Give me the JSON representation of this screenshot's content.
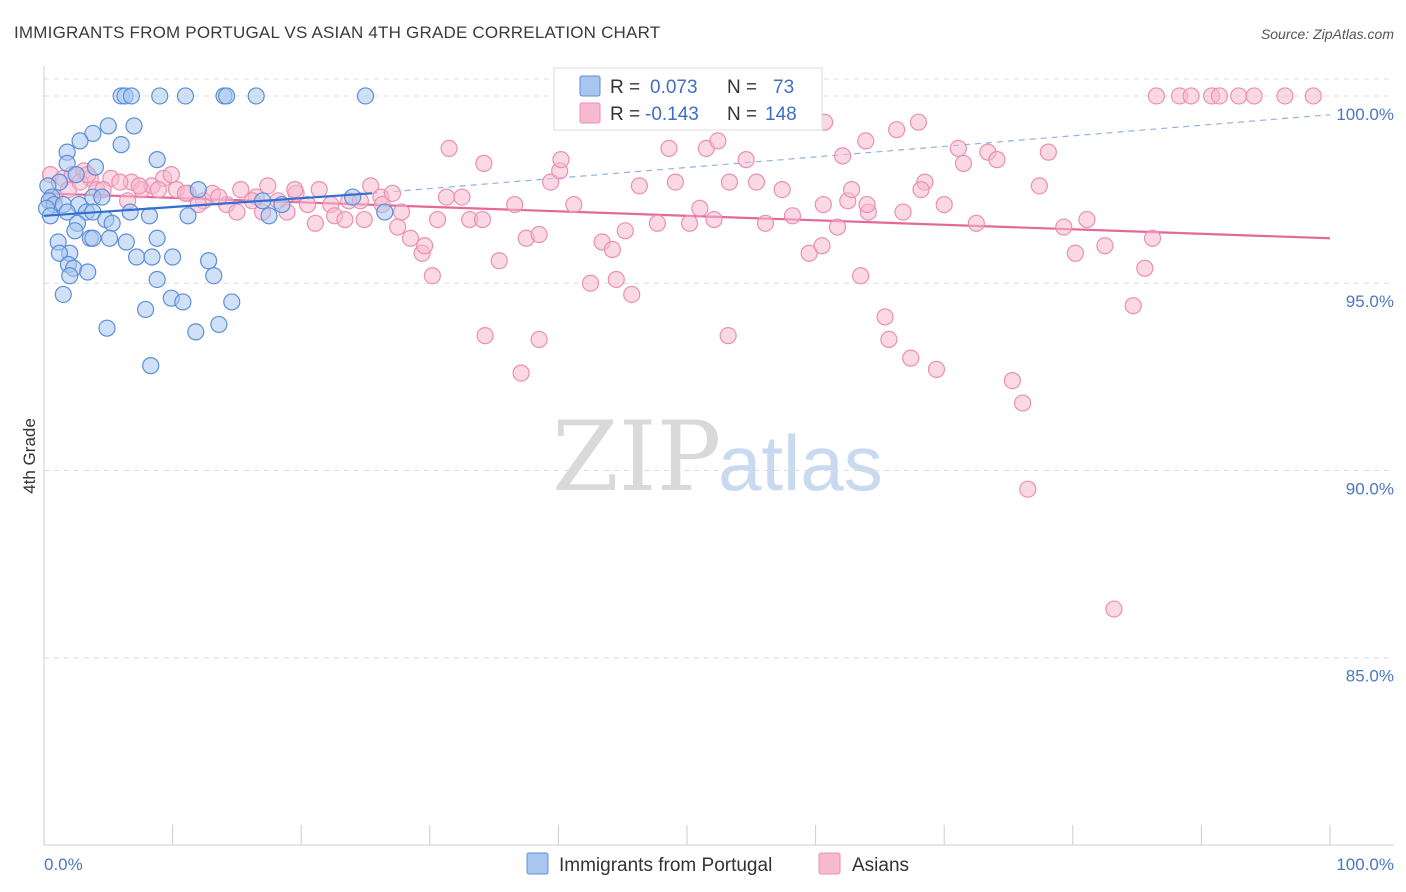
{
  "header": {
    "title": "IMMIGRANTS FROM PORTUGAL VS ASIAN 4TH GRADE CORRELATION CHART",
    "source": "Source: ZipAtlas.com"
  },
  "watermark": {
    "zip": "ZIP",
    "atlas": "atlas"
  },
  "stats_legend": {
    "rows": [
      {
        "r_label": "R =",
        "r_value": "0.073",
        "n_label": "N =",
        "n_value": "73"
      },
      {
        "r_label": "R =",
        "r_value": "-0.143",
        "n_label": "N =",
        "n_value": "148"
      }
    ]
  },
  "colors": {
    "portugal_fill": "#a9c6ef",
    "portugal_stroke": "#5b8fd9",
    "portugal_line": "#2f6fcf",
    "asians_fill": "#f6b9cf",
    "asians_stroke": "#eb8fb0",
    "asians_line": "#e2699a",
    "grid": "#dcdcdc",
    "tick_text": "#4a78c2"
  },
  "chart_data": {
    "type": "scatter",
    "title": "IMMIGRANTS FROM PORTUGAL VS ASIAN 4TH GRADE CORRELATION CHART",
    "xlabel": "",
    "ylabel": "4th Grade",
    "xlim": [
      0,
      100
    ],
    "ylim": [
      80,
      100.8
    ],
    "x_ticks": [
      "0.0%",
      "100.0%"
    ],
    "y_ticks": [
      {
        "value": 100,
        "label": "100.0%"
      },
      {
        "value": 95,
        "label": "95.0%"
      },
      {
        "value": 90,
        "label": "90.0%"
      },
      {
        "value": 85,
        "label": "85.0%"
      }
    ],
    "legend_position": "bottom-center",
    "series": [
      {
        "name": "Immigrants from Portugal",
        "r": 0.073,
        "n": 73,
        "trend": {
          "x": [
            0,
            25.5
          ],
          "y": [
            96.8,
            97.4
          ],
          "dashed_to": [
            100,
            99.5
          ]
        },
        "points": [
          [
            6,
            100
          ],
          [
            6.3,
            100
          ],
          [
            6.8,
            100
          ],
          [
            9,
            100
          ],
          [
            11,
            100
          ],
          [
            14,
            100
          ],
          [
            14.2,
            100
          ],
          [
            16.5,
            100
          ],
          [
            25,
            100
          ],
          [
            5,
            99.2
          ],
          [
            7,
            99.2
          ],
          [
            3.8,
            99
          ],
          [
            1.8,
            98.5
          ],
          [
            6,
            98.7
          ],
          [
            2.8,
            98.8
          ],
          [
            8.8,
            98.3
          ],
          [
            1.8,
            98.2
          ],
          [
            4,
            98.1
          ],
          [
            2.5,
            97.9
          ],
          [
            1.2,
            97.7
          ],
          [
            0.3,
            97.6
          ],
          [
            0.6,
            97.3
          ],
          [
            0.4,
            97.2
          ],
          [
            0.8,
            97.1
          ],
          [
            1.5,
            97.1
          ],
          [
            2.7,
            97.1
          ],
          [
            3.8,
            97.3
          ],
          [
            4.5,
            97.3
          ],
          [
            0.2,
            97
          ],
          [
            0.5,
            96.8
          ],
          [
            1.8,
            96.9
          ],
          [
            3.3,
            96.9
          ],
          [
            3.8,
            96.9
          ],
          [
            6.7,
            96.9
          ],
          [
            4.8,
            96.7
          ],
          [
            5.3,
            96.6
          ],
          [
            2.6,
            96.6
          ],
          [
            2.4,
            96.4
          ],
          [
            8.2,
            96.8
          ],
          [
            11.2,
            96.8
          ],
          [
            3.6,
            96.2
          ],
          [
            3.8,
            96.2
          ],
          [
            5.1,
            96.2
          ],
          [
            1.1,
            96.1
          ],
          [
            6.4,
            96.1
          ],
          [
            8.8,
            96.2
          ],
          [
            2,
            95.8
          ],
          [
            1.2,
            95.8
          ],
          [
            7.2,
            95.7
          ],
          [
            8.4,
            95.7
          ],
          [
            10,
            95.7
          ],
          [
            12.8,
            95.6
          ],
          [
            1.9,
            95.5
          ],
          [
            2.3,
            95.4
          ],
          [
            3.4,
            95.3
          ],
          [
            2,
            95.2
          ],
          [
            13.2,
            95.2
          ],
          [
            8.8,
            95.1
          ],
          [
            1.5,
            94.7
          ],
          [
            9.9,
            94.6
          ],
          [
            10.8,
            94.5
          ],
          [
            14.6,
            94.5
          ],
          [
            7.9,
            94.3
          ],
          [
            4.9,
            93.8
          ],
          [
            13.6,
            93.9
          ],
          [
            11.8,
            93.7
          ],
          [
            8.3,
            92.8
          ],
          [
            12,
            97.5
          ],
          [
            17,
            97.2
          ],
          [
            18.5,
            97.1
          ],
          [
            24,
            97.3
          ],
          [
            17.5,
            96.8
          ],
          [
            26.5,
            96.9
          ]
        ]
      },
      {
        "name": "Asians",
        "r": -0.143,
        "n": 148,
        "trend": {
          "x": [
            0,
            100
          ],
          "y": [
            97.4,
            96.2
          ]
        },
        "points": [
          [
            0.5,
            97.9
          ],
          [
            1.5,
            97.8
          ],
          [
            2.2,
            97.9
          ],
          [
            3.1,
            98
          ],
          [
            3.6,
            97.8
          ],
          [
            4.1,
            97.5
          ],
          [
            5.2,
            97.8
          ],
          [
            6.8,
            97.7
          ],
          [
            7.6,
            97.5
          ],
          [
            8.4,
            97.6
          ],
          [
            9.3,
            97.8
          ],
          [
            10.3,
            97.5
          ],
          [
            11.2,
            97.4
          ],
          [
            12.4,
            97.2
          ],
          [
            13.1,
            97.4
          ],
          [
            14.2,
            97.1
          ],
          [
            15.3,
            97.5
          ],
          [
            16.5,
            97.3
          ],
          [
            17.4,
            97.6
          ],
          [
            18.2,
            97.2
          ],
          [
            19.6,
            97.4
          ],
          [
            20.5,
            97.1
          ],
          [
            21.4,
            97.5
          ],
          [
            22.3,
            97.1
          ],
          [
            23.7,
            97.2
          ],
          [
            24.6,
            97.2
          ],
          [
            25.4,
            97.6
          ],
          [
            26.2,
            97.3
          ],
          [
            27.1,
            97.4
          ],
          [
            27.5,
            96.5
          ],
          [
            0.8,
            97.3
          ],
          [
            1.9,
            97.5
          ],
          [
            2.8,
            97.7
          ],
          [
            3.4,
            97.9
          ],
          [
            4.6,
            97.5
          ],
          [
            5.9,
            97.7
          ],
          [
            6.5,
            97.2
          ],
          [
            7.4,
            97.6
          ],
          [
            8.9,
            97.5
          ],
          [
            9.9,
            97.9
          ],
          [
            11,
            97.4
          ],
          [
            12,
            97.1
          ],
          [
            13.6,
            97.3
          ],
          [
            15,
            96.9
          ],
          [
            16.2,
            97.2
          ],
          [
            17,
            96.9
          ],
          [
            18.9,
            96.9
          ],
          [
            19.5,
            97.5
          ],
          [
            21.1,
            96.6
          ],
          [
            22.6,
            96.8
          ],
          [
            23.4,
            96.7
          ],
          [
            24.9,
            96.7
          ],
          [
            26.3,
            97.1
          ],
          [
            27.8,
            96.9
          ],
          [
            28.5,
            96.2
          ],
          [
            29.4,
            95.8
          ],
          [
            30.2,
            95.2
          ],
          [
            31.3,
            97.3
          ],
          [
            32.5,
            97.3
          ],
          [
            33.1,
            96.7
          ],
          [
            34.1,
            96.7
          ],
          [
            35.4,
            95.6
          ],
          [
            36.6,
            97.1
          ],
          [
            37.5,
            96.2
          ],
          [
            38.5,
            96.3
          ],
          [
            39.4,
            97.7
          ],
          [
            40.1,
            98
          ],
          [
            41.2,
            97.1
          ],
          [
            42.5,
            95
          ],
          [
            43.4,
            96.1
          ],
          [
            44.2,
            95.9
          ],
          [
            45.2,
            96.4
          ],
          [
            46.3,
            97.6
          ],
          [
            47.7,
            96.6
          ],
          [
            49.1,
            97.7
          ],
          [
            50.2,
            96.6
          ],
          [
            51,
            97
          ],
          [
            52.1,
            96.7
          ],
          [
            53.3,
            97.7
          ],
          [
            54.6,
            98.3
          ],
          [
            55.4,
            97.7
          ],
          [
            56.1,
            96.6
          ],
          [
            57.4,
            97.5
          ],
          [
            58.2,
            96.8
          ],
          [
            59.5,
            95.8
          ],
          [
            60.6,
            97.1
          ],
          [
            61.7,
            96.5
          ],
          [
            62.5,
            97.2
          ],
          [
            63.5,
            95.2
          ],
          [
            64.1,
            96.9
          ],
          [
            65.4,
            94.1
          ],
          [
            66.8,
            96.9
          ],
          [
            67.4,
            93
          ],
          [
            68,
            99.3
          ],
          [
            68.5,
            97.7
          ],
          [
            69.4,
            92.7
          ],
          [
            70,
            97.1
          ],
          [
            71.1,
            98.6
          ],
          [
            71.5,
            98.2
          ],
          [
            72.5,
            96.6
          ],
          [
            73.4,
            98.5
          ],
          [
            74.1,
            98.3
          ],
          [
            75.3,
            92.4
          ],
          [
            76.1,
            91.8
          ],
          [
            76.5,
            89.5
          ],
          [
            77.4,
            97.6
          ],
          [
            78.1,
            98.5
          ],
          [
            79.3,
            96.5
          ],
          [
            80.2,
            95.8
          ],
          [
            81.1,
            96.7
          ],
          [
            82.5,
            96
          ],
          [
            83.2,
            86.3
          ],
          [
            84.7,
            94.4
          ],
          [
            85.6,
            95.4
          ],
          [
            86.2,
            96.2
          ],
          [
            86.5,
            100
          ],
          [
            88.3,
            100
          ],
          [
            89.2,
            100
          ],
          [
            90.8,
            100
          ],
          [
            91.4,
            100
          ],
          [
            92.9,
            100
          ],
          [
            94.1,
            100
          ],
          [
            96.5,
            100
          ],
          [
            98.7,
            100
          ],
          [
            40.2,
            98.3
          ],
          [
            38.5,
            93.5
          ],
          [
            34.3,
            93.6
          ],
          [
            31.5,
            98.6
          ],
          [
            44.5,
            95.1
          ],
          [
            45.7,
            94.7
          ],
          [
            30.6,
            96.7
          ],
          [
            29.6,
            96
          ],
          [
            34.2,
            98.2
          ],
          [
            37.1,
            92.6
          ],
          [
            48.6,
            98.6
          ],
          [
            51.5,
            98.6
          ],
          [
            52.4,
            98.8
          ],
          [
            53.2,
            93.6
          ],
          [
            57.6,
            99.4
          ],
          [
            60.7,
            99.3
          ],
          [
            62.1,
            98.4
          ],
          [
            66.3,
            99.1
          ],
          [
            65.7,
            93.5
          ],
          [
            62.8,
            97.5
          ],
          [
            60.5,
            96
          ],
          [
            68.2,
            97.5
          ],
          [
            64,
            97.1
          ],
          [
            63.9,
            98.8
          ]
        ]
      }
    ]
  },
  "bottom_legend": {
    "items": [
      {
        "label": "Immigrants from Portugal"
      },
      {
        "label": "Asians"
      }
    ]
  }
}
